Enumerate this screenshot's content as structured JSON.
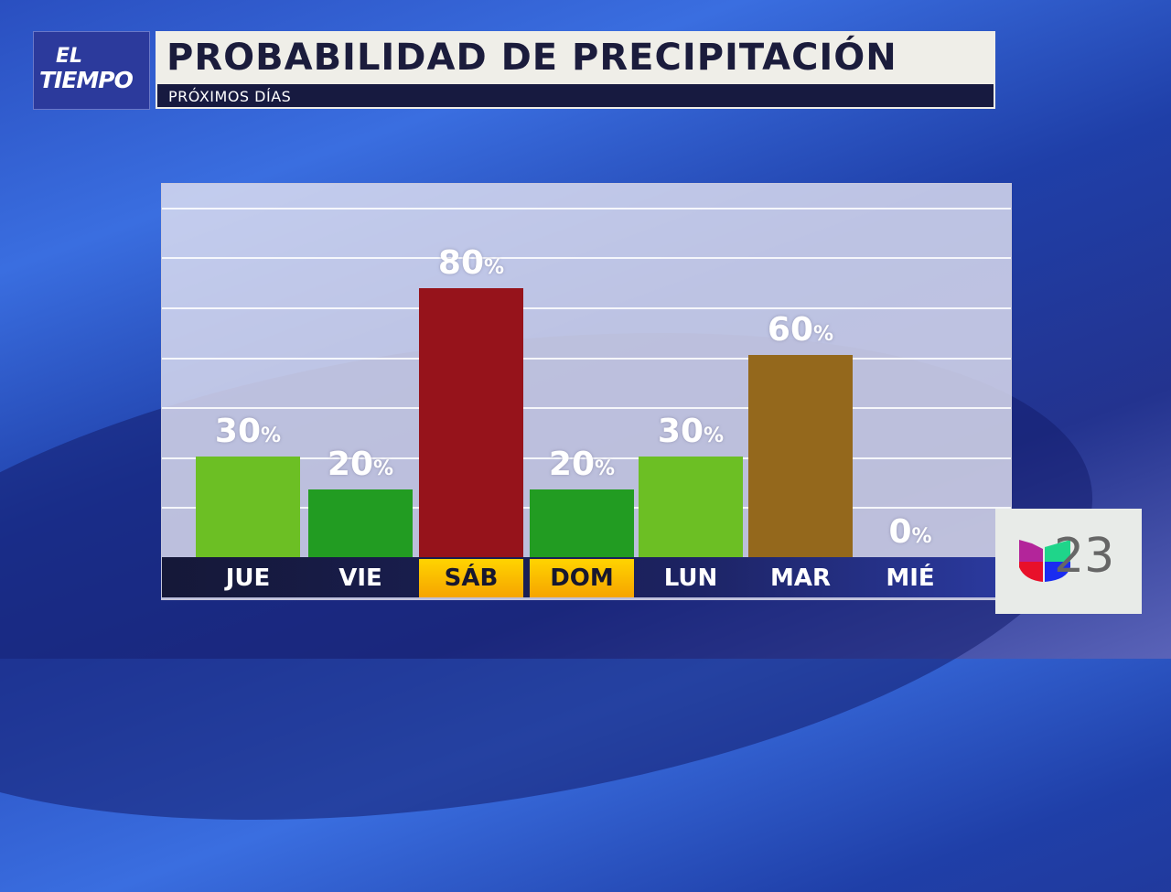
{
  "header": {
    "logo_line1": "EL",
    "logo_line2": "TIEMPO",
    "title": "PROBABILIDAD DE PRECIPITACIÓN",
    "subtitle": "PRÓXIMOS DÍAS"
  },
  "station": {
    "logo_text": "23"
  },
  "chart_data": {
    "type": "bar",
    "title": "PROBABILIDAD DE PRECIPITACIÓN",
    "subtitle": "PRÓXIMOS DÍAS",
    "categories": [
      "JUE",
      "VIE",
      "SÁB",
      "DOM",
      "LUN",
      "MAR",
      "MIÉ"
    ],
    "values": [
      30,
      20,
      80,
      20,
      30,
      60,
      0
    ],
    "labels": [
      "30",
      "20",
      "80",
      "20",
      "30",
      "60",
      "0"
    ],
    "unit": "%",
    "ylim": [
      0,
      100
    ],
    "grid": true,
    "colors": [
      "#6cbf24",
      "#229c22",
      "#96131b",
      "#229c22",
      "#6cbf24",
      "#94681c",
      "#229c22"
    ],
    "highlighted_categories": [
      "SÁB",
      "DOM"
    ],
    "highlight_color": "#f8b800"
  }
}
